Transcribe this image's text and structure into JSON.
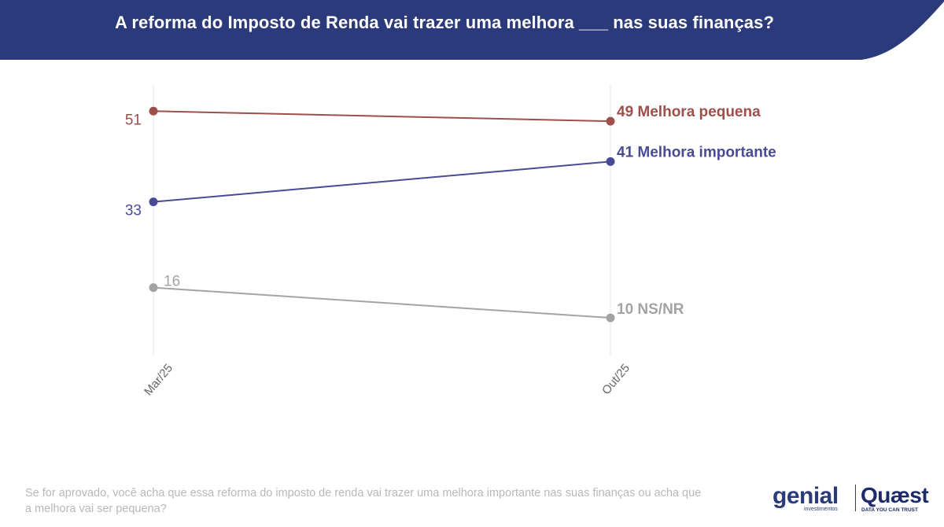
{
  "header": {
    "title": "A reforma do Imposto de Renda vai trazer uma melhora ___ nas suas finanças?",
    "background_color": "#2b3a7a"
  },
  "chart_data": {
    "type": "line",
    "categories": [
      "Mar/25",
      "Out/25"
    ],
    "ylim": [
      0,
      60
    ],
    "grid": false,
    "series": [
      {
        "name": "Melhora pequena",
        "values": [
          51,
          49
        ],
        "color": "#9e4f4a",
        "start_label": "51",
        "end_label": "49 Melhora pequena"
      },
      {
        "name": "Melhora importante",
        "values": [
          33,
          41
        ],
        "color": "#4b4a97",
        "start_label": "33",
        "end_label": "41 Melhora importante"
      },
      {
        "name": "NS/NR",
        "values": [
          16,
          10
        ],
        "color": "#a3a3a3",
        "start_label": "16",
        "end_label": "10 NS/NR"
      }
    ]
  },
  "footnote": {
    "text": "Se for aprovado, você acha que essa reforma do imposto de renda vai trazer uma melhora importante nas suas finanças ou acha que a melhora vai ser pequena?"
  },
  "logos": {
    "genial": "genial",
    "genial_sub": "investimentos",
    "quaest": "Quæst",
    "quaest_sub": "DATA YOU CAN TRUST"
  }
}
